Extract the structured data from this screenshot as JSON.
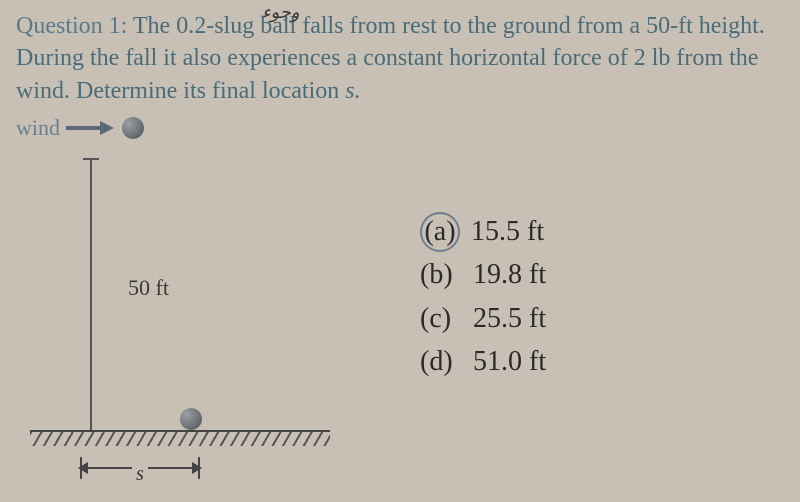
{
  "annotation": "وجوء",
  "question": {
    "label": "Question 1:",
    "text_part1": " The 0.2-slug ball falls from rest to the ground from a 50-ft height. During the fall it also experiences a constant horizontal force of 2 lb from the wind. Determine its final location ",
    "final_s": "s.",
    "text_color": "#4a6b7a"
  },
  "wind_label": "wind",
  "diagram": {
    "height_label": "50 ft",
    "s_label": "s",
    "ball_color": "#4a5055",
    "line_color": "#555555",
    "ground_color": "#444444"
  },
  "answers": {
    "circled_index": 0,
    "options": [
      {
        "key": "(a)",
        "value": "15.5 ft"
      },
      {
        "key": "(b)",
        "value": "19.8 ft"
      },
      {
        "key": "(c)",
        "value": "25.5 ft"
      },
      {
        "key": "(d)",
        "value": "51.0 ft"
      }
    ]
  },
  "background_color": "#c8c0b4"
}
